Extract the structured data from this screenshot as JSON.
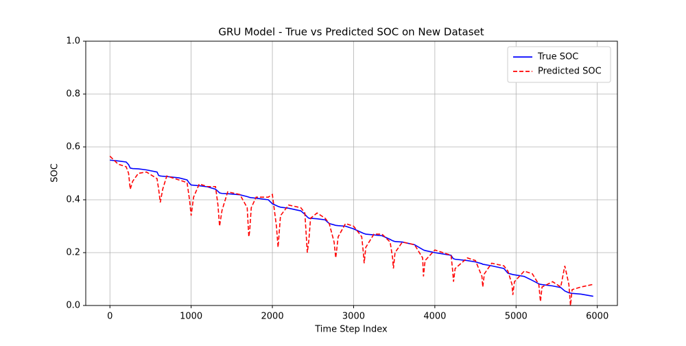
{
  "chart_data": {
    "type": "line",
    "title": "GRU Model - True vs Predicted SOC on New Dataset",
    "x_label": "Time Step Index",
    "y_label": "SOC",
    "x": [
      0,
      100,
      200,
      230,
      250,
      280,
      350,
      450,
      580,
      600,
      620,
      650,
      700,
      850,
      950,
      980,
      1000,
      1030,
      1100,
      1200,
      1300,
      1330,
      1350,
      1380,
      1450,
      1600,
      1690,
      1710,
      1720,
      1740,
      1800,
      1950,
      2000,
      2050,
      2070,
      2100,
      2200,
      2350,
      2400,
      2430,
      2450,
      2470,
      2550,
      2650,
      2700,
      2760,
      2780,
      2810,
      2900,
      3000,
      3100,
      3120,
      3130,
      3150,
      3250,
      3350,
      3450,
      3480,
      3490,
      3510,
      3600,
      3750,
      3850,
      3860,
      3880,
      4000,
      4200,
      4220,
      4230,
      4250,
      4400,
      4500,
      4580,
      4590,
      4610,
      4700,
      4850,
      4900,
      4950,
      4960,
      4980,
      5100,
      5200,
      5280,
      5300,
      5320,
      5450,
      5550,
      5600,
      5650,
      5670,
      5690,
      5800,
      5950
    ],
    "series": [
      {
        "name": "True SOC",
        "color": "#0000ff",
        "dash": false,
        "values": [
          0.55,
          0.547,
          0.543,
          0.533,
          0.52,
          0.518,
          0.517,
          0.513,
          0.505,
          0.492,
          0.49,
          0.489,
          0.488,
          0.483,
          0.475,
          0.462,
          0.456,
          0.455,
          0.453,
          0.449,
          0.44,
          0.432,
          0.426,
          0.424,
          0.423,
          0.419,
          0.412,
          0.41,
          0.409,
          0.408,
          0.406,
          0.4,
          0.385,
          0.378,
          0.375,
          0.372,
          0.368,
          0.358,
          0.345,
          0.335,
          0.33,
          0.33,
          0.328,
          0.324,
          0.31,
          0.305,
          0.303,
          0.302,
          0.3,
          0.29,
          0.276,
          0.273,
          0.272,
          0.27,
          0.267,
          0.264,
          0.25,
          0.245,
          0.244,
          0.242,
          0.24,
          0.23,
          0.212,
          0.21,
          0.208,
          0.2,
          0.19,
          0.18,
          0.177,
          0.175,
          0.17,
          0.165,
          0.158,
          0.156,
          0.155,
          0.15,
          0.14,
          0.122,
          0.118,
          0.117,
          0.116,
          0.11,
          0.095,
          0.082,
          0.08,
          0.079,
          0.074,
          0.068,
          0.055,
          0.048,
          0.047,
          0.046,
          0.043,
          0.035
        ]
      },
      {
        "name": "Predicted SOC",
        "color": "#ff0000",
        "dash": true,
        "values": [
          0.565,
          0.535,
          0.525,
          0.5,
          0.44,
          0.47,
          0.5,
          0.505,
          0.48,
          0.44,
          0.39,
          0.44,
          0.49,
          0.475,
          0.465,
          0.4,
          0.34,
          0.41,
          0.46,
          0.45,
          0.45,
          0.38,
          0.3,
          0.36,
          0.43,
          0.42,
          0.37,
          0.26,
          0.28,
          0.37,
          0.41,
          0.41,
          0.42,
          0.3,
          0.22,
          0.34,
          0.38,
          0.37,
          0.35,
          0.2,
          0.25,
          0.33,
          0.35,
          0.33,
          0.31,
          0.24,
          0.18,
          0.26,
          0.31,
          0.3,
          0.26,
          0.2,
          0.16,
          0.22,
          0.27,
          0.27,
          0.24,
          0.18,
          0.14,
          0.2,
          0.24,
          0.23,
          0.18,
          0.11,
          0.17,
          0.21,
          0.19,
          0.13,
          0.09,
          0.14,
          0.18,
          0.17,
          0.11,
          0.07,
          0.12,
          0.16,
          0.15,
          0.13,
          0.08,
          0.04,
          0.09,
          0.13,
          0.12,
          0.08,
          0.015,
          0.07,
          0.09,
          0.07,
          0.15,
          0.08,
          0.0,
          0.06,
          0.07,
          0.08
        ]
      }
    ],
    "xlim": [
      -297.5,
      6247.5
    ],
    "ylim": [
      0,
      1
    ],
    "xticks": [
      0,
      1000,
      2000,
      3000,
      4000,
      5000,
      6000
    ],
    "yticks": [
      {
        "value": 0,
        "label": "0.0"
      },
      0.2,
      0.4,
      0.6,
      0.8,
      {
        "value": 1,
        "label": "1.0"
      }
    ],
    "grid": true,
    "legend": "upper right"
  }
}
